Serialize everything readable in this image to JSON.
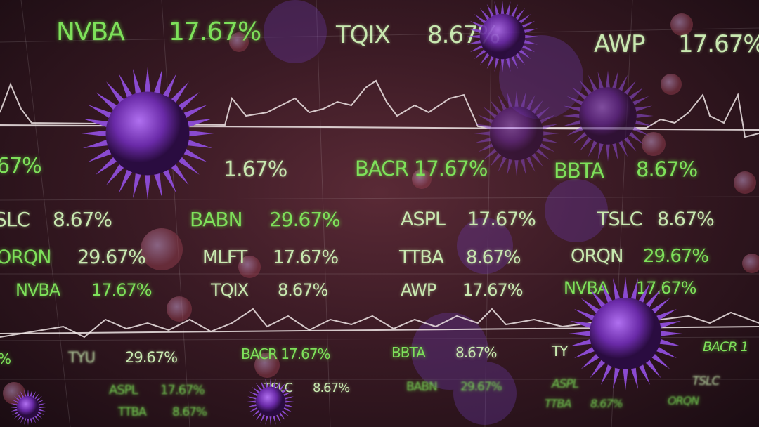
{
  "colors": {
    "ticker_green": "#7ee05a",
    "ticker_pale": "#c8e8b0",
    "virus": "#7a3fc0",
    "background": "#3a1a24"
  },
  "tickers": [
    "NVBA",
    "17.67%",
    "TQIX",
    "8.67%",
    "AWP",
    "17.67%",
    "67%",
    "1.67%",
    "BACR 17.67%",
    "BBTA",
    "8.67%",
    "SLC",
    "8.67%",
    "BABN",
    "29.67%",
    "ASPL",
    "17.67%",
    "TSLC",
    "8.67%",
    "ORQN",
    "29.67%",
    "MLFT",
    "17.67%",
    "TTBA",
    "8.67%",
    "ORQN",
    "29.67%",
    "NVBA",
    "17.67%",
    "TQIX",
    "8.67%",
    "AWP",
    "17.67%",
    "NVBA",
    "17.67%",
    "%",
    "TYU",
    "29.67%",
    "BACR 17.67%",
    "BBTA",
    "8.67%",
    "TY",
    "BACR 1",
    "ASPL",
    "17.67%",
    "TSLC",
    "8.67%",
    "BABN",
    "29.67%",
    "ASPL",
    "TSLC",
    "TTBA",
    "8.67%",
    "TTBA",
    "8.67%",
    "ORQN"
  ],
  "icons": [
    "virus-icon",
    "grid",
    "waveform"
  ]
}
